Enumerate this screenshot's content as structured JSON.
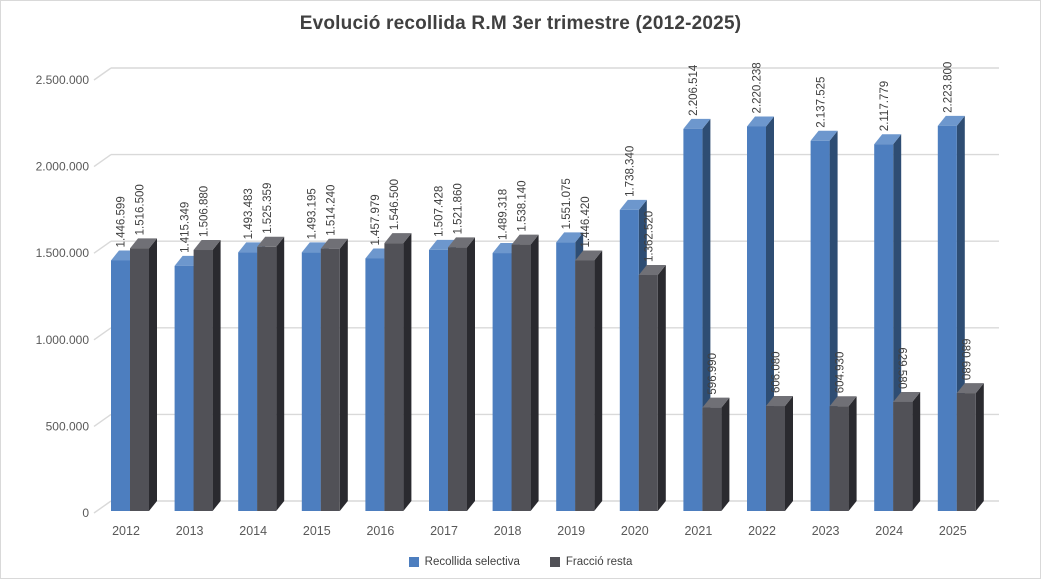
{
  "chart_data": {
    "type": "bar",
    "subtype": "3d-clustered-column",
    "title": "Evolució recollida R.M 3er trimestre (2012-2025)",
    "background_color": "#FFFFFF",
    "border_color": "#D9D9D9",
    "gridline_color": "#D9D9D9",
    "axis_text_color": "#595959",
    "data_label_color": "#404040",
    "grid": true,
    "legend_position": "bottom",
    "categories": [
      "2012",
      "2013",
      "2014",
      "2015",
      "2016",
      "2017",
      "2018",
      "2019",
      "2020",
      "2021",
      "2022",
      "2023",
      "2024",
      "2025"
    ],
    "series": [
      {
        "name": "Recollida selectiva",
        "color": "#4D7EBF",
        "color_top": "#6D97CD",
        "color_side": "#2E4D73",
        "values": [
          1446599,
          1415349,
          1493483,
          1493195,
          1457979,
          1507428,
          1489318,
          1551075,
          1738340,
          2206514,
          2220238,
          2137525,
          2117779,
          2223800
        ],
        "labels": [
          "1.446.599",
          "1.415.349",
          "1.493.483",
          "1.493.195",
          "1.457.979",
          "1.507.428",
          "1.489.318",
          "1.551.075",
          "1.738.340",
          "2.206.514",
          "2.220.238",
          "2.137.525",
          "2.117.779",
          "2.223.800"
        ],
        "label_rotation_flipped_categories": []
      },
      {
        "name": "Fracció resta",
        "color": "#515157",
        "color_top": "#707076",
        "color_side": "#2A2A2F",
        "values": [
          1516500,
          1506880,
          1525359,
          1514240,
          1546500,
          1521860,
          1538140,
          1446420,
          1362520,
          596990,
          606080,
          604930,
          629580,
          680680
        ],
        "labels": [
          "1.516.500",
          "1.506.880",
          "1.525.359",
          "1.514.240",
          "1.546.500",
          "1.521.860",
          "1.538.140",
          "1.446.420",
          "1.362.520",
          "596.990",
          "606.080",
          "604.930",
          "629.580",
          "680.680"
        ],
        "label_rotation_flipped_categories": [
          "2024",
          "2025"
        ]
      }
    ],
    "y_axis": {
      "min": 0,
      "max": 2500000,
      "tick_values": [
        0,
        500000,
        1000000,
        1500000,
        2000000,
        2500000
      ],
      "tick_labels": [
        "0",
        "500.000",
        "1.000.000",
        "1.500.000",
        "2.000.000",
        "2.500.000"
      ]
    }
  }
}
